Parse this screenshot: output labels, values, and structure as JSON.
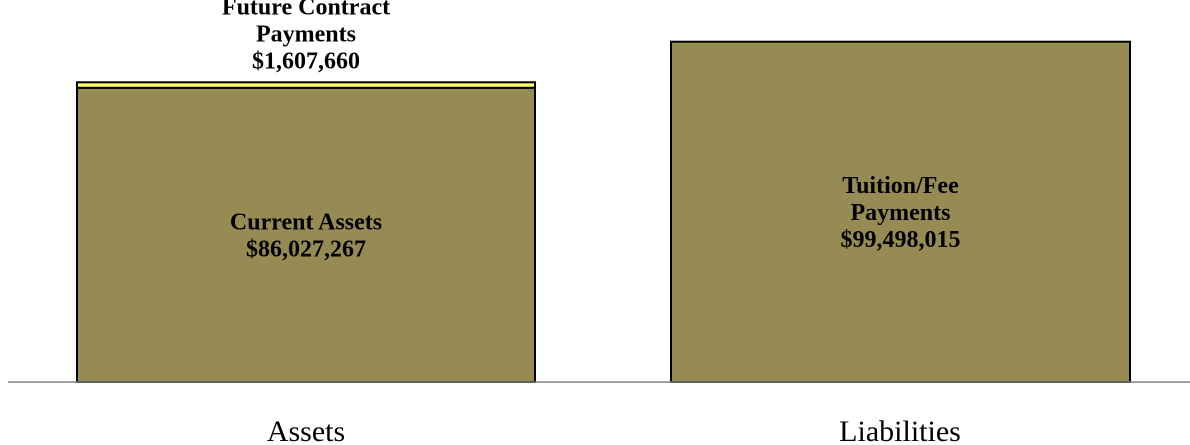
{
  "chart_data": {
    "type": "bar",
    "stacked": true,
    "categories": [
      "Assets",
      "Liabilities"
    ],
    "bars": [
      {
        "category": "Assets",
        "segments": [
          {
            "label_lines": [
              "Current Assets",
              "$86,027,267"
            ],
            "value": 86027267,
            "color": "#968B52"
          },
          {
            "label_lines": [
              "Future Contract",
              "Payments",
              "$1,607,660"
            ],
            "value": 1607660,
            "color": "#FFFF66"
          }
        ]
      },
      {
        "category": "Liabilities",
        "segments": [
          {
            "label_lines": [
              "Tuition/Fee",
              "Payments",
              "$99,498,015"
            ],
            "value": 99498015,
            "color": "#968B52"
          }
        ]
      }
    ],
    "ylim": [
      0,
      100000000
    ],
    "grid": false,
    "legend": "none",
    "colors": {
      "bar_fill": "#968B52",
      "highlight_fill": "#FFFF66",
      "bar_stroke": "#000000",
      "axis": "#808080"
    }
  }
}
